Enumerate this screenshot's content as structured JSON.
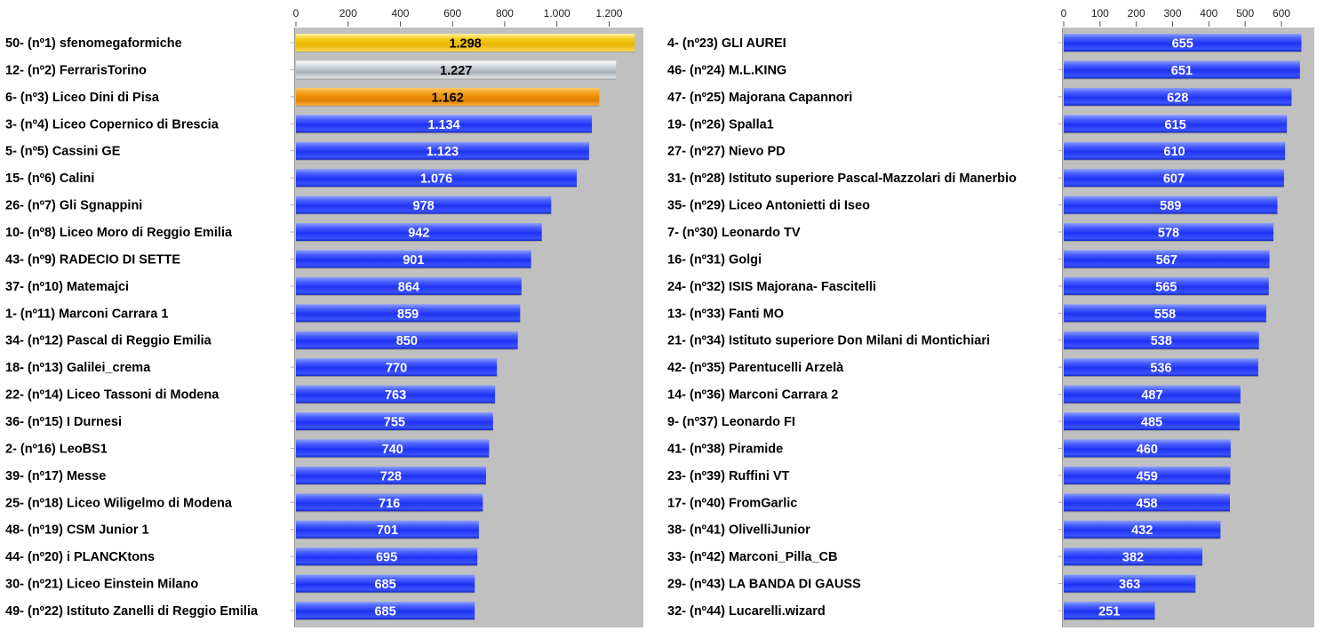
{
  "colors": {
    "plot_background": "#c0c0c0",
    "gold": "#f2c200",
    "silver": "#c8ccd2",
    "bronze": "#f0900a",
    "blue": "#2a40ff",
    "label_text": "#000000",
    "value_text_light": "#ffffff",
    "value_text_dark": "#000000"
  },
  "chart_data": [
    {
      "type": "bar",
      "orientation": "horizontal",
      "xlim": [
        0,
        1300
      ],
      "ticks": [
        0,
        200,
        400,
        600,
        800,
        1000,
        1200
      ],
      "tick_labels": [
        "0",
        "200",
        "400",
        "600",
        "800",
        "1.000",
        "1.200"
      ],
      "categories": [
        "50- (nº1) sfenomegaformiche",
        "12- (nº2) FerrarisTorino",
        "6- (nº3) Liceo Dini di Pisa",
        "3- (nº4) Liceo Copernico di Brescia",
        "5- (nº5) Cassini GE",
        "15- (nº6) Calini",
        "26- (nº7) Gli Sgnappini",
        "10- (nº8) Liceo Moro di Reggio Emilia",
        "43- (nº9) RADECIO DI SETTE",
        "37- (nº10) Matemajci",
        "1- (nº11) Marconi Carrara 1",
        "34- (nº12) Pascal di Reggio Emilia",
        "18- (nº13) Galilei_crema",
        "22- (nº14) Liceo Tassoni di Modena",
        "36- (nº15) I Durnesi",
        "2- (nº16) LeoBS1",
        "39- (nº17) Messe",
        "25- (nº18) Liceo Wiligelmo di Modena",
        "48- (nº19) CSM Junior 1",
        "44- (nº20) i PLANCKtons",
        "30- (nº21) Liceo Einstein Milano",
        "49- (nº22) Istituto Zanelli di Reggio Emilia"
      ],
      "values": [
        1298,
        1227,
        1162,
        1134,
        1123,
        1076,
        978,
        942,
        901,
        864,
        859,
        850,
        770,
        763,
        755,
        740,
        728,
        716,
        701,
        695,
        685,
        685
      ],
      "value_labels": [
        "1.298",
        "1.227",
        "1.162",
        "1.134",
        "1.123",
        "1.076",
        "978",
        "942",
        "901",
        "864",
        "859",
        "850",
        "770",
        "763",
        "755",
        "740",
        "728",
        "716",
        "701",
        "695",
        "685",
        "685"
      ],
      "bar_colors": [
        "gold",
        "silver",
        "bronze",
        "blue",
        "blue",
        "blue",
        "blue",
        "blue",
        "blue",
        "blue",
        "blue",
        "blue",
        "blue",
        "blue",
        "blue",
        "blue",
        "blue",
        "blue",
        "blue",
        "blue",
        "blue",
        "blue"
      ],
      "grid": false,
      "legend": "none"
    },
    {
      "type": "bar",
      "orientation": "horizontal",
      "xlim": [
        0,
        680
      ],
      "ticks": [
        0,
        100,
        200,
        300,
        400,
        500,
        600
      ],
      "tick_labels": [
        "0",
        "100",
        "200",
        "300",
        "400",
        "500",
        "600"
      ],
      "categories": [
        "4- (nº23) GLI AUREI",
        "46- (nº24) M.L.KING",
        "47- (nº25) Majorana Capannori",
        "19- (nº26) Spalla1",
        "27- (nº27) Nievo PD",
        "31- (nº28) Istituto superiore Pascal-Mazzolari di Manerbio",
        "35- (nº29) Liceo Antonietti di Iseo",
        "7- (nº30) Leonardo TV",
        "16- (nº31) Golgi",
        "24- (nº32) ISIS Majorana- Fascitelli",
        "13- (nº33) Fanti MO",
        "21- (nº34) Istituto superiore Don Milani di Montichiari",
        "42- (nº35) Parentucelli Arzelà",
        "14- (nº36) Marconi Carrara 2",
        "9- (nº37) Leonardo FI",
        "41- (nº38) Piramide",
        "23- (nº39) Ruffini VT",
        "17- (nº40) FromGarlic",
        "38- (nº41) OlivelliJunior",
        "33- (nº42) Marconi_Pilla_CB",
        "29- (nº43) LA BANDA DI GAUSS",
        "32- (nº44) Lucarelli.wizard"
      ],
      "values": [
        655,
        651,
        628,
        615,
        610,
        607,
        589,
        578,
        567,
        565,
        558,
        538,
        536,
        487,
        485,
        460,
        459,
        458,
        432,
        382,
        363,
        251
      ],
      "value_labels": [
        "655",
        "651",
        "628",
        "615",
        "610",
        "607",
        "589",
        "578",
        "567",
        "565",
        "558",
        "538",
        "536",
        "487",
        "485",
        "460",
        "459",
        "458",
        "432",
        "382",
        "363",
        "251"
      ],
      "bar_colors": [
        "blue",
        "blue",
        "blue",
        "blue",
        "blue",
        "blue",
        "blue",
        "blue",
        "blue",
        "blue",
        "blue",
        "blue",
        "blue",
        "blue",
        "blue",
        "blue",
        "blue",
        "blue",
        "blue",
        "blue",
        "blue",
        "blue"
      ],
      "grid": false,
      "legend": "none"
    }
  ]
}
